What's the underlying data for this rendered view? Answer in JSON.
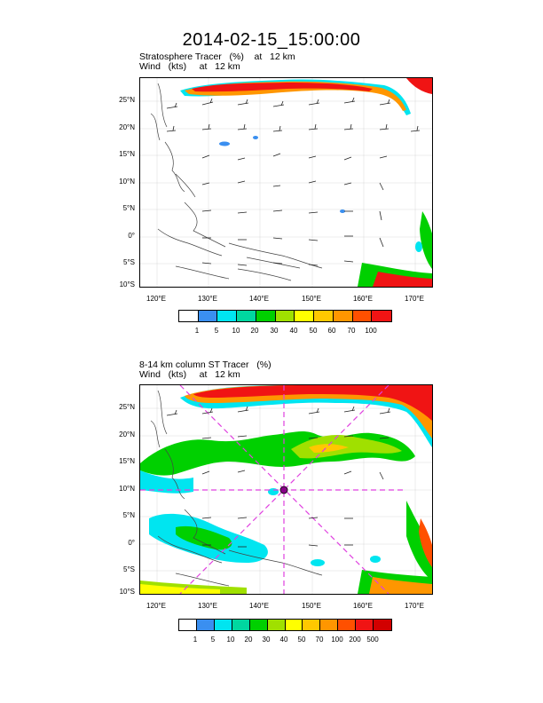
{
  "title": "2014-02-15_15:00:00",
  "panels": [
    {
      "subtitle_line1": "Stratosphere Tracer   (%)    at   12 km",
      "subtitle_line2": "Wind   (kts)     at   12 km",
      "lat_labels": [
        "25°N",
        "20°N",
        "15°N",
        "10°N",
        "5°N",
        "0°",
        "5°S",
        "10°S"
      ],
      "lon_labels": [
        "120°E",
        "130°E",
        "140°E",
        "150°E",
        "160°E",
        "170°E"
      ],
      "colorbar_labels": [
        "1",
        "5",
        "10",
        "20",
        "30",
        "40",
        "50",
        "60",
        "70",
        "100"
      ]
    },
    {
      "subtitle_line1": "8-14 km column ST Tracer   (%)",
      "subtitle_line2": "Wind   (kts)     at   12 km",
      "lat_labels": [
        "25°N",
        "20°N",
        "15°N",
        "10°N",
        "5°N",
        "0°",
        "5°S",
        "10°S"
      ],
      "lon_labels": [
        "120°E",
        "130°E",
        "140°E",
        "150°E",
        "160°E",
        "170°E"
      ],
      "colorbar_labels": [
        "1",
        "5",
        "10",
        "20",
        "30",
        "40",
        "50",
        "70",
        "100",
        "200",
        "500"
      ]
    }
  ],
  "colors": {
    "bar1": [
      "#ffffff",
      "#3a8ff0",
      "#00e5f0",
      "#00d7a0",
      "#00d000",
      "#a0e000",
      "#ffff00",
      "#ffc800",
      "#ff9600",
      "#ff5000",
      "#f01414"
    ],
    "bar2": [
      "#ffffff",
      "#3a8ff0",
      "#00e5f0",
      "#00d7a0",
      "#00d000",
      "#a0e000",
      "#ffff00",
      "#ffc800",
      "#ff9600",
      "#ff5000",
      "#f01414",
      "#d20000"
    ],
    "cross_lines": "#e040e0"
  }
}
